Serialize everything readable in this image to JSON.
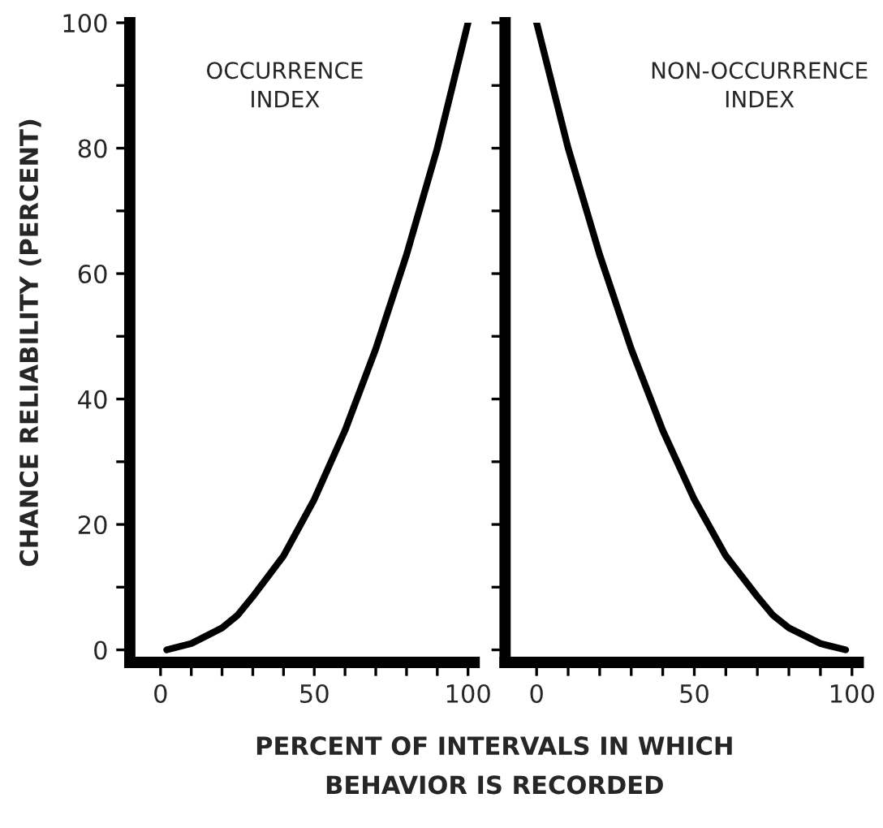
{
  "chart_data": [
    {
      "type": "line",
      "xlabel": "PERCENT OF INTERVALS IN WHICH\nBEHAVIOR IS RECORDED",
      "ylabel": "CHANCE RELIABILITY (PERCENT)",
      "annotations": [
        "OCCURRENCE\nINDEX"
      ],
      "x": [
        2,
        10,
        20,
        25,
        30,
        40,
        50,
        60,
        70,
        80,
        90,
        100
      ],
      "series": [
        {
          "color": "#000000",
          "values": [
            0,
            1,
            3.5,
            5.5,
            8.5,
            15,
            24,
            35,
            48,
            63,
            80,
            100
          ]
        }
      ],
      "xlim": [
        -10,
        102
      ],
      "ylim": [
        -2,
        100
      ],
      "xticks": [
        {
          "value": 0,
          "label": "0"
        },
        {
          "value": 10,
          "label": null
        },
        {
          "value": 20,
          "label": null
        },
        {
          "value": 30,
          "label": null
        },
        {
          "value": 40,
          "label": null
        },
        {
          "value": 50,
          "label": "50"
        },
        {
          "value": 60,
          "label": null
        },
        {
          "value": 70,
          "label": null
        },
        {
          "value": 80,
          "label": null
        },
        {
          "value": 90,
          "label": null
        },
        {
          "value": 100,
          "label": "100"
        }
      ],
      "yticks": [
        {
          "value": 0,
          "label": "0"
        },
        {
          "value": 10,
          "label": null
        },
        {
          "value": 20,
          "label": "20"
        },
        {
          "value": 30,
          "label": null
        },
        {
          "value": 40,
          "label": "40"
        },
        {
          "value": 50,
          "label": null
        },
        {
          "value": 60,
          "label": "60"
        },
        {
          "value": 70,
          "label": null
        },
        {
          "value": 80,
          "label": "80"
        },
        {
          "value": 90,
          "label": null
        },
        {
          "value": 100,
          "label": "100"
        }
      ],
      "grid": false,
      "legend": false
    },
    {
      "type": "line",
      "annotations": [
        "NON-OCCURRENCE\nINDEX"
      ],
      "x": [
        0,
        10,
        20,
        30,
        40,
        50,
        60,
        70,
        75,
        80,
        90,
        98
      ],
      "series": [
        {
          "color": "#000000",
          "values": [
            100,
            80,
            63,
            48,
            35,
            24,
            15,
            8.5,
            5.5,
            3.5,
            1,
            0
          ]
        }
      ],
      "xlim": [
        -10,
        102
      ],
      "ylim": [
        -2,
        100
      ],
      "xticks": [
        {
          "value": 0,
          "label": "0"
        },
        {
          "value": 10,
          "label": null
        },
        {
          "value": 20,
          "label": null
        },
        {
          "value": 30,
          "label": null
        },
        {
          "value": 40,
          "label": null
        },
        {
          "value": 50,
          "label": "50"
        },
        {
          "value": 60,
          "label": null
        },
        {
          "value": 70,
          "label": null
        },
        {
          "value": 80,
          "label": null
        },
        {
          "value": 90,
          "label": null
        },
        {
          "value": 100,
          "label": "100"
        }
      ],
      "yticks": [
        0,
        10,
        20,
        30,
        40,
        50,
        60,
        70,
        80,
        90,
        100
      ],
      "tick_labels": "x",
      "grid": false,
      "legend": false
    }
  ]
}
